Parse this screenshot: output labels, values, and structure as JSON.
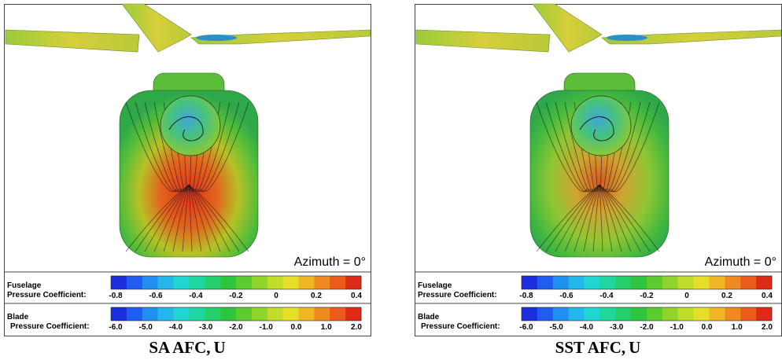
{
  "panels": [
    {
      "annotation": "Azimuth = 0°",
      "legends": [
        {
          "title": "Fuselage",
          "subtitle": "Pressure Coefficient:",
          "ticks": [
            "-0.8",
            "-0.6",
            "-0.4",
            "-0.2",
            "0",
            "0.2",
            "0.4"
          ]
        },
        {
          "title": "Blade",
          "subtitle": "Pressure Coefficient:",
          "ticks": [
            "-6.0",
            "-5.0",
            "-4.0",
            "-3.0",
            "-2.0",
            "-1.0",
            "0.0",
            "1.0",
            "2.0"
          ]
        }
      ],
      "caption": {
        "text": "SA AFC,",
        "symbol": "U"
      }
    },
    {
      "annotation": "Azimuth = 0°",
      "legends": [
        {
          "title": "Fuselage",
          "subtitle": "Pressure Coefficient:",
          "ticks": [
            "-0.8",
            "-0.6",
            "-0.4",
            "-0.2",
            "0",
            "0.2",
            "0.4"
          ]
        },
        {
          "title": "Blade",
          "subtitle": "Pressure Coefficient:",
          "ticks": [
            "-6.0",
            "-5.0",
            "-4.0",
            "-3.0",
            "-2.0",
            "-1.0",
            "0.0",
            "1.0",
            "2.0"
          ]
        }
      ],
      "caption": {
        "text": "SST AFC,",
        "symbol": "U"
      }
    }
  ]
}
